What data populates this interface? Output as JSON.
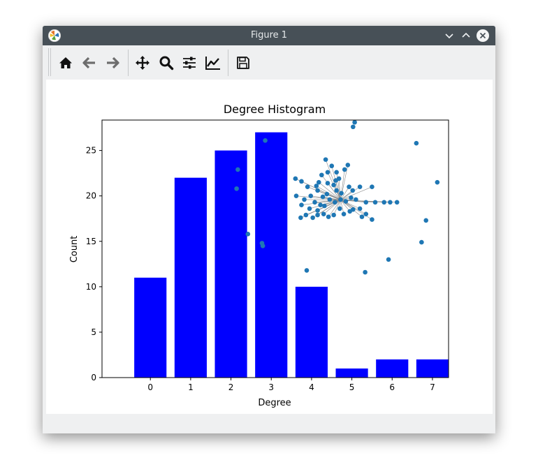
{
  "window": {
    "title": "Figure 1"
  },
  "toolbar": {
    "tools": [
      "home-icon",
      "back-icon",
      "forward-icon",
      "pan-icon",
      "zoom-icon",
      "configure-subplots-icon",
      "edit-axis-icon",
      "save-icon"
    ]
  },
  "colors": {
    "bar": "#0000ff",
    "node": "#1f77b4",
    "titlebar": "#475057"
  },
  "chart_data": {
    "type": "bar",
    "title": "Degree Histogram",
    "xlabel": "Degree",
    "ylabel": "Count",
    "categories": [
      0,
      1,
      2,
      3,
      4,
      5,
      6,
      7
    ],
    "values": [
      11,
      22,
      25,
      27,
      10,
      1,
      2,
      2
    ],
    "bar_offset": -0.4,
    "bar_width": 0.8,
    "xlim": [
      -1.2,
      7.4
    ],
    "ylim": [
      0,
      28.35
    ],
    "xticks": [
      "0",
      "1",
      "2",
      "3",
      "4",
      "5",
      "6",
      "7"
    ],
    "yticks": [
      "0",
      "5",
      "10",
      "15",
      "20",
      "25"
    ],
    "ytick_values": [
      0,
      5,
      10,
      15,
      20,
      25
    ],
    "inset": {
      "type": "network",
      "nodes": [
        [
          5.03,
          27.6
        ],
        [
          5.07,
          28.1
        ],
        [
          2.85,
          26.1
        ],
        [
          2.17,
          22.9
        ],
        [
          2.14,
          20.8
        ],
        [
          2.42,
          15.8
        ],
        [
          2.77,
          14.8
        ],
        [
          2.79,
          14.5
        ],
        [
          3.88,
          11.8
        ],
        [
          5.33,
          11.6
        ],
        [
          5.91,
          13.0
        ],
        [
          6.6,
          25.8
        ],
        [
          7.12,
          21.5
        ],
        [
          6.84,
          17.3
        ],
        [
          6.73,
          14.9
        ],
        [
          3.6,
          21.9
        ],
        [
          3.75,
          21.6
        ],
        [
          3.9,
          21.0
        ],
        [
          4.15,
          20.6
        ],
        [
          4.4,
          21.4
        ],
        [
          4.62,
          22.6
        ],
        [
          4.82,
          22.9
        ],
        [
          4.93,
          21.0
        ],
        [
          5.2,
          21.0
        ],
        [
          5.5,
          21.0
        ],
        [
          5.02,
          20.6
        ],
        [
          5.1,
          19.6
        ],
        [
          5.35,
          19.3
        ],
        [
          5.58,
          19.3
        ],
        [
          5.8,
          19.3
        ],
        [
          5.95,
          19.3
        ],
        [
          6.12,
          19.3
        ],
        [
          5.2,
          18.6
        ],
        [
          5.35,
          18.0
        ],
        [
          5.25,
          17.7
        ],
        [
          5.5,
          17.4
        ],
        [
          3.62,
          20.0
        ],
        [
          3.75,
          19.0
        ],
        [
          3.95,
          18.6
        ],
        [
          4.15,
          18.4
        ],
        [
          4.3,
          18.0
        ],
        [
          4.42,
          17.7
        ],
        [
          4.55,
          17.9
        ],
        [
          4.8,
          18.0
        ],
        [
          4.95,
          18.3
        ],
        [
          4.7,
          18.6
        ],
        [
          4.58,
          19.3
        ],
        [
          4.45,
          19.6
        ],
        [
          4.72,
          19.6
        ],
        [
          4.62,
          20.6
        ],
        [
          4.38,
          20.2
        ],
        [
          4.55,
          21.2
        ],
        [
          4.68,
          21.9
        ],
        [
          4.25,
          22.3
        ],
        [
          4.4,
          22.6
        ],
        [
          4.9,
          23.4
        ],
        [
          4.35,
          24.0
        ],
        [
          4.5,
          23.3
        ],
        [
          3.82,
          19.6
        ],
        [
          3.98,
          20.0
        ],
        [
          4.08,
          19.3
        ],
        [
          4.22,
          19.0
        ],
        [
          4.28,
          19.9
        ],
        [
          4.85,
          19.4
        ],
        [
          4.98,
          19.8
        ],
        [
          4.74,
          20.3
        ],
        [
          5.03,
          18.5
        ],
        [
          4.18,
          21.5
        ],
        [
          4.32,
          18.9
        ],
        [
          3.73,
          17.6
        ],
        [
          4.03,
          17.6
        ],
        [
          4.15,
          17.9
        ],
        [
          3.86,
          17.9
        ],
        [
          4.6,
          21.7
        ],
        [
          4.12,
          21.1
        ]
      ],
      "center": [
        4.72,
        19.55
      ]
    }
  }
}
